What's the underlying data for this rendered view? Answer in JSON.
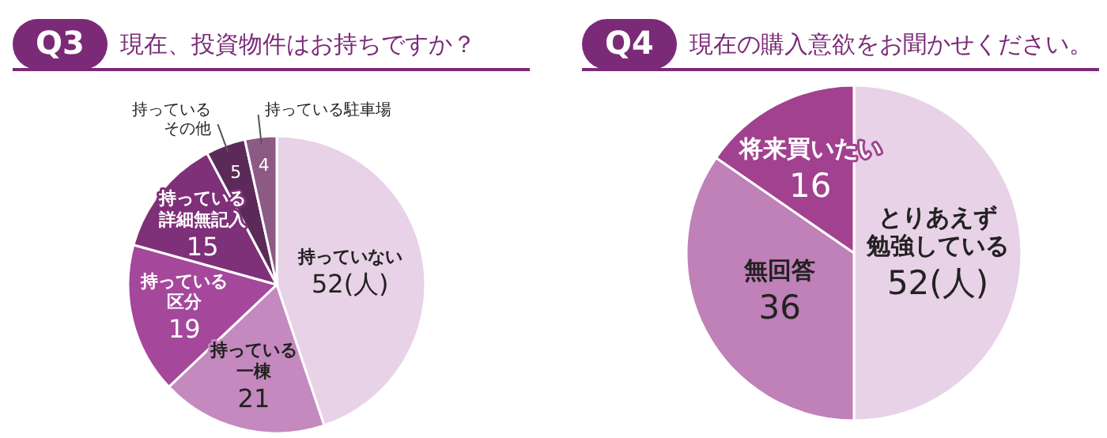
{
  "chart_data": [
    {
      "type": "pie",
      "title": "現在、投資物件はお持ちですか？",
      "annotations": [
        "Q3"
      ],
      "categories": [
        "持っていない",
        "持っている一棟",
        "持っている区分",
        "持っている詳細無記入",
        "持っているその他",
        "持っている駐車場"
      ],
      "values": [
        52,
        21,
        19,
        15,
        5,
        4
      ],
      "value_labels": [
        "52(人)",
        "21",
        "19",
        "15",
        "5",
        "4"
      ],
      "colors": [
        "#e8d2e7",
        "#c489be",
        "#a5489b",
        "#7e3078",
        "#5c2a58",
        "#8c5a84"
      ],
      "legend": false
    },
    {
      "type": "pie",
      "title": "現在の購入意欲をお聞かせください。",
      "annotations": [
        "Q4"
      ],
      "categories": [
        "とりあえず勉強している",
        "無回答",
        "将来買いたい"
      ],
      "values": [
        52,
        36,
        16
      ],
      "value_labels": [
        "52(人)",
        "36",
        "16"
      ],
      "colors": [
        "#e8d2e7",
        "#c080b8",
        "#a2418f"
      ],
      "legend": false
    }
  ]
}
